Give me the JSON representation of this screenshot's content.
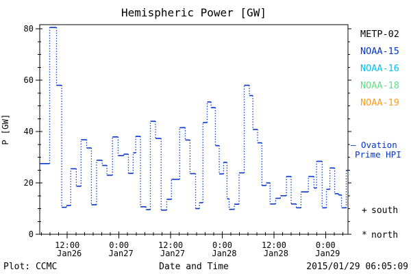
{
  "title": "Hemispheric Power [GW]",
  "footer": {
    "left": "Plot: CCMC",
    "right": "2015/01/29 06:05:09"
  },
  "colors": {
    "background": "#ffffff",
    "frame": "#000000",
    "series_line": "#0533cc"
  },
  "legend": {
    "satellites": [
      {
        "label": "METP-02",
        "color": "#000000"
      },
      {
        "label": "NOAA-15",
        "color": "#0533cc"
      },
      {
        "label": "NOAA-16",
        "color": "#00c3f5"
      },
      {
        "label": "NOAA-18",
        "color": "#63df84"
      },
      {
        "label": "NOAA-19",
        "color": "#ff9c1a"
      }
    ],
    "series": {
      "line1": "— Ovation",
      "line2": "Prime HPI",
      "color": "#0533cc"
    },
    "hemisphere_markers": [
      {
        "symbol": "+",
        "label": "south"
      },
      {
        "symbol": "*",
        "label": "north"
      }
    ]
  },
  "chart_data": {
    "type": "line",
    "subtype": "step-post, solid horizontal segments with dotted vertical risers",
    "series_name": "Ovation Prime HPI",
    "title": "Hemispheric Power [GW]",
    "xlabel": "Date and Time",
    "ylabel": "P [GW]",
    "ylim": [
      0,
      81.6
    ],
    "y_major_ticks": [
      0,
      20,
      40,
      60,
      80
    ],
    "y_minor_step": 5,
    "grid": "off",
    "legend_position": "right",
    "line_color": "#0533cc",
    "t_unit": "hours since 2015-01-26 00:00",
    "t_range": [
      5.6,
      77.2
    ],
    "x_minor_step": 2,
    "x_major_ticks": [
      {
        "t": 12,
        "time": "12:00",
        "date": "Jan26"
      },
      {
        "t": 24,
        "time": "0:00",
        "date": "Jan27"
      },
      {
        "t": 36,
        "time": "12:00",
        "date": "Jan27"
      },
      {
        "t": 48,
        "time": "0:00",
        "date": "Jan28"
      },
      {
        "t": 60,
        "time": "12:00",
        "date": "Jan28"
      },
      {
        "t": 72,
        "time": "0:00",
        "date": "Jan29"
      }
    ],
    "t_hours": [
      5.6,
      7.9,
      9.5,
      10.7,
      11.8,
      12.8,
      14.1,
      15.2,
      16.5,
      17.6,
      18.8,
      20.1,
      21.2,
      22.5,
      23.8,
      25.1,
      26.2,
      27.3,
      27.9,
      29.0,
      30.3,
      31.3,
      32.5,
      33.8,
      35.1,
      36.2,
      38.1,
      39.4,
      40.5,
      41.8,
      42.7,
      43.5,
      44.5,
      45.4,
      46.4,
      47.3,
      48.3,
      49.1,
      49.6,
      50.8,
      51.9,
      53.1,
      54.3,
      55.1,
      56.2,
      57.2,
      58.2,
      59.1,
      60.4,
      61.5,
      62.9,
      64.0,
      65.2,
      66.3,
      68.0,
      69.3,
      69.9,
      71.2,
      72.2,
      73.0,
      74.1,
      75.0,
      75.7,
      76.8
    ],
    "gw_values": [
      27.5,
      80.5,
      58.0,
      10.5,
      11.2,
      25.5,
      18.7,
      36.8,
      33.6,
      11.5,
      28.8,
      26.8,
      23.0,
      37.9,
      30.6,
      31.2,
      23.7,
      31.7,
      38.1,
      10.7,
      9.6,
      44.0,
      37.3,
      9.4,
      13.6,
      21.4,
      41.5,
      36.7,
      23.6,
      10.0,
      12.3,
      43.5,
      51.5,
      49.3,
      34.5,
      23.5,
      28.0,
      13.8,
      9.7,
      11.7,
      23.9,
      58.0,
      54.0,
      40.8,
      35.6,
      19.0,
      20.0,
      11.8,
      14.0,
      15.0,
      22.5,
      11.8,
      10.3,
      16.5,
      22.5,
      18.0,
      28.4,
      10.3,
      17.5,
      25.8,
      15.8,
      15.3,
      10.3,
      24.9
    ]
  }
}
